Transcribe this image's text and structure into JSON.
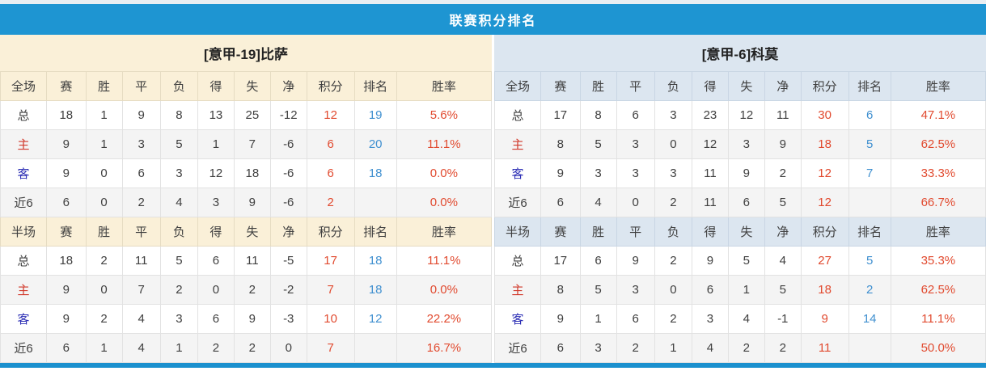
{
  "header": {
    "title": "联赛积分排名"
  },
  "columns": {
    "stats": [
      "赛",
      "胜",
      "平",
      "负",
      "得",
      "失",
      "净",
      "积分",
      "排名",
      "胜率"
    ]
  },
  "colors": {
    "title_bar_blue": "#1e95d2",
    "left_theme_cream": "#faf0d8",
    "right_theme_blue": "#dce6f0",
    "points_red": "#e14a2f",
    "rank_blue": "#4090d0",
    "home_label_red": "#d1382a",
    "away_label_blue": "#2d2fb5"
  },
  "tables": [
    {
      "side": "left",
      "title": "[意甲-19]比萨",
      "sections": [
        {
          "scope": "全场",
          "rows": [
            [
              "总",
              "18",
              "1",
              "9",
              "8",
              "13",
              "25",
              "-12",
              "12",
              "19",
              "5.6%"
            ],
            [
              "主",
              "9",
              "1",
              "3",
              "5",
              "1",
              "7",
              "-6",
              "6",
              "20",
              "11.1%"
            ],
            [
              "客",
              "9",
              "0",
              "6",
              "3",
              "12",
              "18",
              "-6",
              "6",
              "18",
              "0.0%"
            ],
            [
              "近6",
              "6",
              "0",
              "2",
              "4",
              "3",
              "9",
              "-6",
              "2",
              "",
              "0.0%"
            ]
          ]
        },
        {
          "scope": "半场",
          "rows": [
            [
              "总",
              "18",
              "2",
              "11",
              "5",
              "6",
              "11",
              "-5",
              "17",
              "18",
              "11.1%"
            ],
            [
              "主",
              "9",
              "0",
              "7",
              "2",
              "0",
              "2",
              "-2",
              "7",
              "18",
              "0.0%"
            ],
            [
              "客",
              "9",
              "2",
              "4",
              "3",
              "6",
              "9",
              "-3",
              "10",
              "12",
              "22.2%"
            ],
            [
              "近6",
              "6",
              "1",
              "4",
              "1",
              "2",
              "2",
              "0",
              "7",
              "",
              "16.7%"
            ]
          ]
        }
      ]
    },
    {
      "side": "right",
      "title": "[意甲-6]科莫",
      "sections": [
        {
          "scope": "全场",
          "rows": [
            [
              "总",
              "17",
              "8",
              "6",
              "3",
              "23",
              "12",
              "11",
              "30",
              "6",
              "47.1%"
            ],
            [
              "主",
              "8",
              "5",
              "3",
              "0",
              "12",
              "3",
              "9",
              "18",
              "5",
              "62.5%"
            ],
            [
              "客",
              "9",
              "3",
              "3",
              "3",
              "11",
              "9",
              "2",
              "12",
              "7",
              "33.3%"
            ],
            [
              "近6",
              "6",
              "4",
              "0",
              "2",
              "11",
              "6",
              "5",
              "12",
              "",
              "66.7%"
            ]
          ]
        },
        {
          "scope": "半场",
          "rows": [
            [
              "总",
              "17",
              "6",
              "9",
              "2",
              "9",
              "5",
              "4",
              "27",
              "5",
              "35.3%"
            ],
            [
              "主",
              "8",
              "5",
              "3",
              "0",
              "6",
              "1",
              "5",
              "18",
              "2",
              "62.5%"
            ],
            [
              "客",
              "9",
              "1",
              "6",
              "2",
              "3",
              "4",
              "-1",
              "9",
              "14",
              "11.1%"
            ],
            [
              "近6",
              "6",
              "3",
              "2",
              "1",
              "4",
              "2",
              "2",
              "11",
              "",
              "50.0%"
            ]
          ]
        }
      ]
    }
  ]
}
